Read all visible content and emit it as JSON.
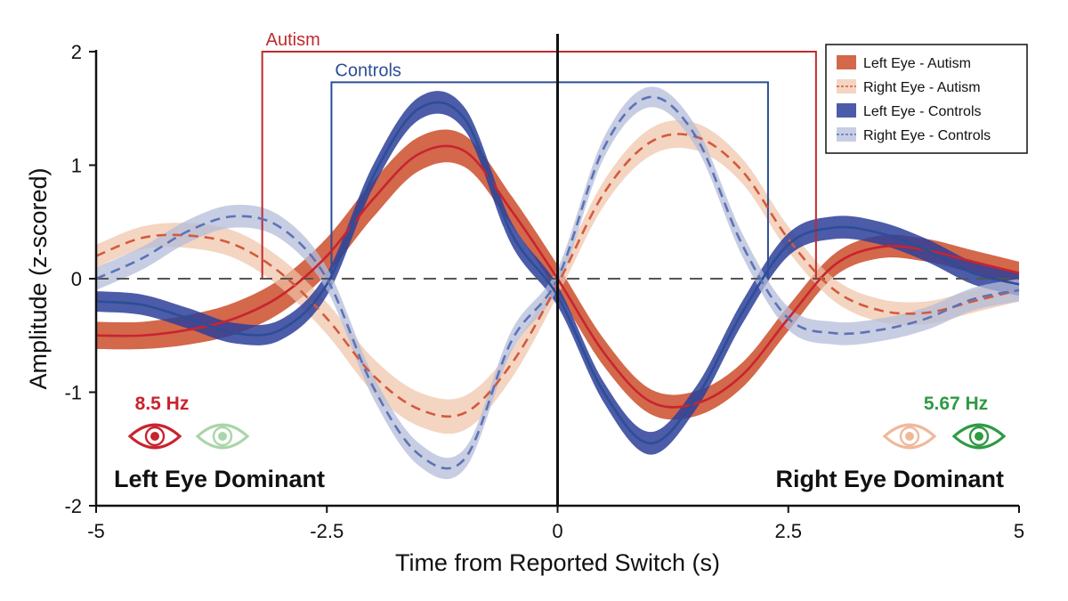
{
  "chart_data": {
    "type": "line",
    "xlabel": "Time from Reported Switch (s)",
    "ylabel": "Amplitude (z-scored)",
    "xlim": [
      -5,
      5
    ],
    "ylim": [
      -2,
      2
    ],
    "x_ticks": [
      -5,
      -2.5,
      0,
      2.5,
      5
    ],
    "x_tick_labels": [
      "-5",
      "-2.5",
      "0",
      "2.5",
      "5"
    ],
    "y_ticks": [
      -2,
      -1,
      0,
      1,
      2
    ],
    "y_tick_labels": [
      "-2",
      "-1",
      "0",
      "1",
      "2"
    ],
    "zero_line": "dashed",
    "switch_line_x": 0,
    "legend_position": "top-right",
    "series": [
      {
        "name": "Left Eye - Autism",
        "color": "#c8242e",
        "band_color": "#c8421e",
        "band_opacity": 0.8,
        "style": "solid",
        "x": [
          -5.0,
          -4.5,
          -4.0,
          -3.5,
          -3.0,
          -2.5,
          -2.0,
          -1.5,
          -1.0,
          -0.5,
          0.0,
          0.5,
          1.0,
          1.5,
          2.0,
          2.5,
          3.0,
          3.5,
          4.0,
          4.5,
          5.0
        ],
        "y": [
          -0.5,
          -0.5,
          -0.45,
          -0.35,
          -0.15,
          0.2,
          0.7,
          1.1,
          1.12,
          0.6,
          0.0,
          -0.65,
          -1.08,
          -1.1,
          -0.85,
          -0.35,
          0.12,
          0.28,
          0.25,
          0.15,
          0.05
        ],
        "band_halfwidth": [
          0.12,
          0.12,
          0.13,
          0.14,
          0.15,
          0.16,
          0.16,
          0.15,
          0.14,
          0.13,
          0.12,
          0.12,
          0.11,
          0.11,
          0.11,
          0.11,
          0.1,
          0.1,
          0.1,
          0.1,
          0.1
        ]
      },
      {
        "name": "Right Eye - Autism",
        "color": "#d35a3c",
        "band_color": "#f0c3a8",
        "band_opacity": 0.7,
        "style": "dashed",
        "x": [
          -5.0,
          -4.5,
          -4.0,
          -3.5,
          -3.0,
          -2.5,
          -2.0,
          -1.5,
          -1.0,
          -0.5,
          0.0,
          0.5,
          1.0,
          1.5,
          2.0,
          2.5,
          3.0,
          3.5,
          4.0,
          4.5,
          5.0
        ],
        "y": [
          0.2,
          0.36,
          0.38,
          0.3,
          0.05,
          -0.35,
          -0.85,
          -1.15,
          -1.18,
          -0.75,
          -0.05,
          0.75,
          1.2,
          1.25,
          0.95,
          0.35,
          -0.1,
          -0.28,
          -0.3,
          -0.2,
          -0.1
        ],
        "band_halfwidth": [
          0.1,
          0.1,
          0.11,
          0.12,
          0.13,
          0.14,
          0.15,
          0.15,
          0.15,
          0.13,
          0.1,
          0.11,
          0.12,
          0.12,
          0.11,
          0.11,
          0.1,
          0.1,
          0.1,
          0.1,
          0.1
        ]
      },
      {
        "name": "Left Eye - Controls",
        "color": "#2c4e96",
        "band_color": "#2d3f9a",
        "band_opacity": 0.85,
        "style": "solid",
        "x": [
          -5.0,
          -4.5,
          -4.0,
          -3.5,
          -3.0,
          -2.5,
          -2.0,
          -1.5,
          -1.0,
          -0.5,
          0.0,
          0.5,
          1.0,
          1.5,
          2.0,
          2.5,
          3.0,
          3.5,
          4.0,
          4.5,
          5.0
        ],
        "y": [
          -0.2,
          -0.23,
          -0.35,
          -0.48,
          -0.45,
          -0.05,
          0.9,
          1.5,
          1.4,
          0.4,
          -0.15,
          -1.0,
          -1.45,
          -1.05,
          -0.3,
          0.3,
          0.45,
          0.4,
          0.25,
          0.05,
          -0.05
        ],
        "band_halfwidth": [
          0.09,
          0.09,
          0.09,
          0.09,
          0.09,
          0.1,
          0.1,
          0.1,
          0.1,
          0.1,
          0.09,
          0.09,
          0.1,
          0.1,
          0.1,
          0.1,
          0.1,
          0.1,
          0.1,
          0.1,
          0.1
        ]
      },
      {
        "name": "Right Eye - Controls",
        "color": "#5d73b5",
        "band_color": "#b4bcda",
        "band_opacity": 0.75,
        "style": "dashed",
        "x": [
          -5.0,
          -4.5,
          -4.0,
          -3.5,
          -3.0,
          -2.5,
          -2.0,
          -1.5,
          -1.0,
          -0.5,
          0.0,
          0.5,
          1.0,
          1.5,
          2.0,
          2.5,
          3.0,
          3.5,
          4.0,
          4.5,
          5.0
        ],
        "y": [
          0.0,
          0.18,
          0.42,
          0.55,
          0.45,
          0.0,
          -0.95,
          -1.55,
          -1.58,
          -0.55,
          0.0,
          1.15,
          1.6,
          1.25,
          0.3,
          -0.35,
          -0.48,
          -0.45,
          -0.35,
          -0.18,
          -0.1
        ],
        "band_halfwidth": [
          0.1,
          0.1,
          0.1,
          0.1,
          0.1,
          0.1,
          0.1,
          0.1,
          0.09,
          0.09,
          0.09,
          0.09,
          0.09,
          0.09,
          0.1,
          0.1,
          0.1,
          0.1,
          0.1,
          0.1,
          0.1
        ]
      }
    ],
    "annotations": [
      {
        "label": "Autism",
        "x_start": -3.2,
        "x_end": 2.8,
        "y_top": 2.0,
        "y_base": 0.0,
        "color": "#c02a2c"
      },
      {
        "label": "Controls",
        "x_start": -2.45,
        "x_end": 2.28,
        "y_top": 1.73,
        "y_base": 0.0,
        "color": "#2c4e96"
      }
    ]
  },
  "overlay": {
    "left_freq": "8.5 Hz",
    "left_freq_color": "#c8242e",
    "right_freq": "5.67 Hz",
    "right_freq_color": "#2f9a44",
    "left_dominant": "Left Eye Dominant",
    "right_dominant": "Right Eye Dominant",
    "left_icons": [
      "eye-icon-dark-red",
      "eye-icon-light-green"
    ],
    "right_icons": [
      "eye-icon-light-orange",
      "eye-icon-dark-green"
    ],
    "icon_colors": {
      "dark_red": "#c8242e",
      "light_green": "#a9d6a9",
      "light_orange": "#f0b89a",
      "dark_green": "#2f9a44"
    }
  }
}
